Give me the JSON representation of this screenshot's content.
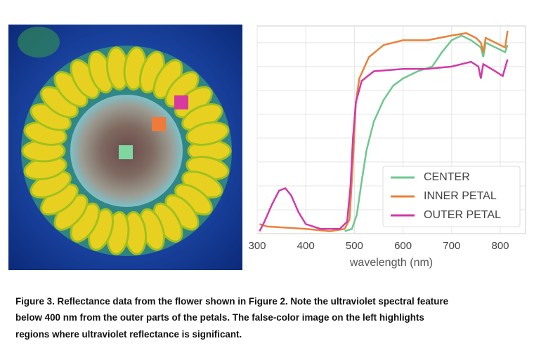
{
  "chart_data": {
    "type": "line",
    "xlabel": "wavelength (nm)",
    "xlim": [
      300,
      852
    ],
    "xticks": [
      300,
      400,
      500,
      600,
      700,
      800
    ],
    "ylim": [
      0,
      0.87
    ],
    "ygrid": [
      0.1,
      0.2,
      0.3,
      0.4,
      0.5,
      0.6,
      0.7,
      0.8
    ],
    "legend": "lower right",
    "series": [
      {
        "name": "CENTER",
        "color": "#6fc78f",
        "x": [
          480,
          495,
          505,
          515,
          525,
          540,
          560,
          580,
          600,
          630,
          660,
          680,
          700,
          720,
          740,
          760,
          765,
          770,
          790,
          810,
          815
        ],
        "values": [
          0.01,
          0.02,
          0.08,
          0.22,
          0.35,
          0.47,
          0.56,
          0.62,
          0.65,
          0.68,
          0.7,
          0.76,
          0.81,
          0.83,
          0.81,
          0.78,
          0.74,
          0.8,
          0.78,
          0.76,
          0.79
        ]
      },
      {
        "name": "INNER PETAL",
        "color": "#e8823a",
        "x": [
          305,
          320,
          400,
          450,
          480,
          490,
          497,
          503,
          510,
          530,
          560,
          600,
          650,
          700,
          730,
          750,
          760,
          765,
          770,
          790,
          810,
          815
        ],
        "values": [
          0.04,
          0.03,
          0.02,
          0.01,
          0.02,
          0.06,
          0.3,
          0.55,
          0.65,
          0.74,
          0.79,
          0.81,
          0.81,
          0.83,
          0.84,
          0.82,
          0.8,
          0.76,
          0.82,
          0.8,
          0.78,
          0.85
        ]
      },
      {
        "name": "OUTER PETAL",
        "color": "#d23aa8",
        "x": [
          305,
          315,
          330,
          345,
          358,
          370,
          385,
          400,
          430,
          470,
          485,
          492,
          497,
          503,
          515,
          540,
          600,
          650,
          700,
          740,
          755,
          760,
          765,
          790,
          805,
          815
        ],
        "values": [
          0.01,
          0.05,
          0.12,
          0.18,
          0.19,
          0.16,
          0.09,
          0.04,
          0.02,
          0.02,
          0.05,
          0.2,
          0.4,
          0.55,
          0.64,
          0.68,
          0.69,
          0.69,
          0.7,
          0.72,
          0.7,
          0.65,
          0.71,
          0.68,
          0.66,
          0.73
        ]
      }
    ]
  },
  "caption": {
    "lines": [
      "Figure 3.  Reflectance data from the flower shown in Figure 2.  Note the ultraviolet spectral feature",
      "below 400 nm from the outer parts of the petals.  The false-color image on the left highlights",
      "regions where ultraviolet reflectance is significant."
    ]
  }
}
